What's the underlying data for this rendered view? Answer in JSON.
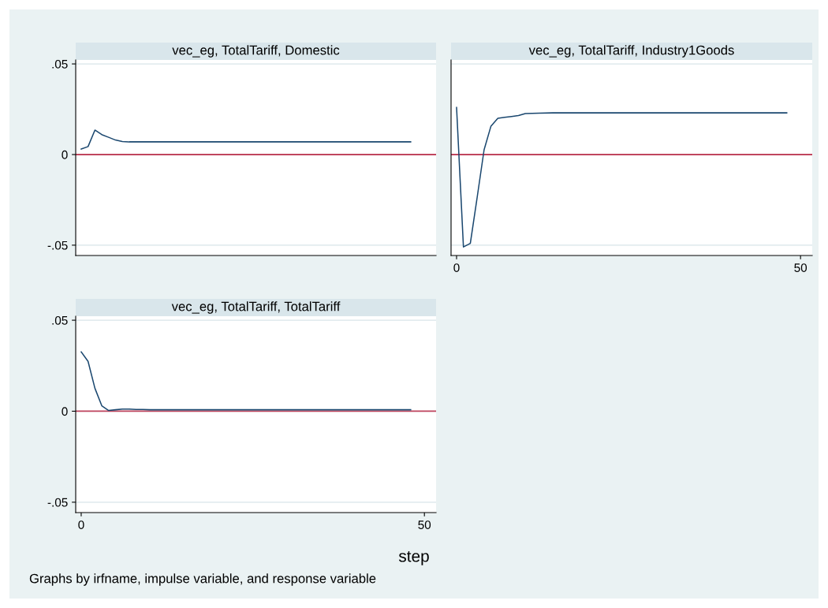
{
  "chart_data": [
    {
      "type": "line",
      "title": "vec_eg, TotalTariff, Domestic",
      "xlim": [
        -0.8,
        51.7
      ],
      "ylim": [
        -0.0557,
        0.0522
      ],
      "xticks": [
        0,
        50
      ],
      "yticks": [
        {
          "value": -0.05,
          "label": "-.05"
        },
        0,
        {
          "value": 0.05,
          "label": ".05"
        }
      ],
      "tick_labels": "y",
      "grid": "y",
      "legend": false,
      "series": [
        {
          "color": "#1a476f",
          "x": [
            0,
            1,
            2,
            3,
            4,
            5,
            6,
            7,
            48
          ],
          "values": [
            0.003,
            0.0044,
            0.0135,
            0.011,
            0.0095,
            0.008,
            0.0072,
            0.007,
            0.007
          ]
        }
      ],
      "ref_lines": [
        {
          "axis": "y",
          "value": 0,
          "color": "#c0455e"
        }
      ]
    },
    {
      "type": "line",
      "title": "vec_eg, TotalTariff, Industry1Goods",
      "xlim": [
        -0.8,
        51.7
      ],
      "ylim": [
        -0.0557,
        0.0522
      ],
      "xticks": [
        0,
        50
      ],
      "yticks": [
        {
          "value": -0.05,
          "label": null
        },
        {
          "value": 0,
          "label": null
        },
        {
          "value": 0.05,
          "label": null
        }
      ],
      "tick_labels": "x",
      "grid": "y",
      "legend": false,
      "series": [
        {
          "color": "#1a476f",
          "x": [
            0,
            1,
            2,
            3,
            4,
            5,
            6,
            7,
            8,
            9,
            10,
            12,
            14,
            48
          ],
          "values": [
            0.026,
            -0.051,
            -0.049,
            -0.0235,
            0.0026,
            0.0157,
            0.02,
            0.0205,
            0.021,
            0.0215,
            0.0226,
            0.0228,
            0.023,
            0.023
          ]
        }
      ],
      "ref_lines": [
        {
          "axis": "y",
          "value": 0,
          "color": "#c0455e"
        }
      ]
    },
    {
      "type": "line",
      "title": "vec_eg, TotalTariff, TotalTariff",
      "xlabel": "step",
      "xlim": [
        -0.8,
        51.7
      ],
      "ylim": [
        -0.0557,
        0.0522
      ],
      "xticks": [
        0,
        50
      ],
      "yticks": [
        {
          "value": -0.05,
          "label": "-.05"
        },
        0,
        {
          "value": 0.05,
          "label": ".05"
        }
      ],
      "grid": "y",
      "legend": false,
      "series": [
        {
          "color": "#1a476f",
          "x": [
            0,
            1,
            2,
            3,
            4,
            5,
            6,
            7,
            8,
            9,
            10,
            48
          ],
          "values": [
            0.0326,
            0.0274,
            0.0126,
            0.003,
            0.0004,
            0.0008,
            0.0012,
            0.0012,
            0.001,
            0.001,
            0.0008,
            0.0008
          ]
        }
      ],
      "ref_lines": [
        {
          "axis": "y",
          "value": 0,
          "color": "#c0455e"
        }
      ],
      "annotations": [
        "Graphs by irfname, impulse variable, and response variable"
      ]
    }
  ]
}
